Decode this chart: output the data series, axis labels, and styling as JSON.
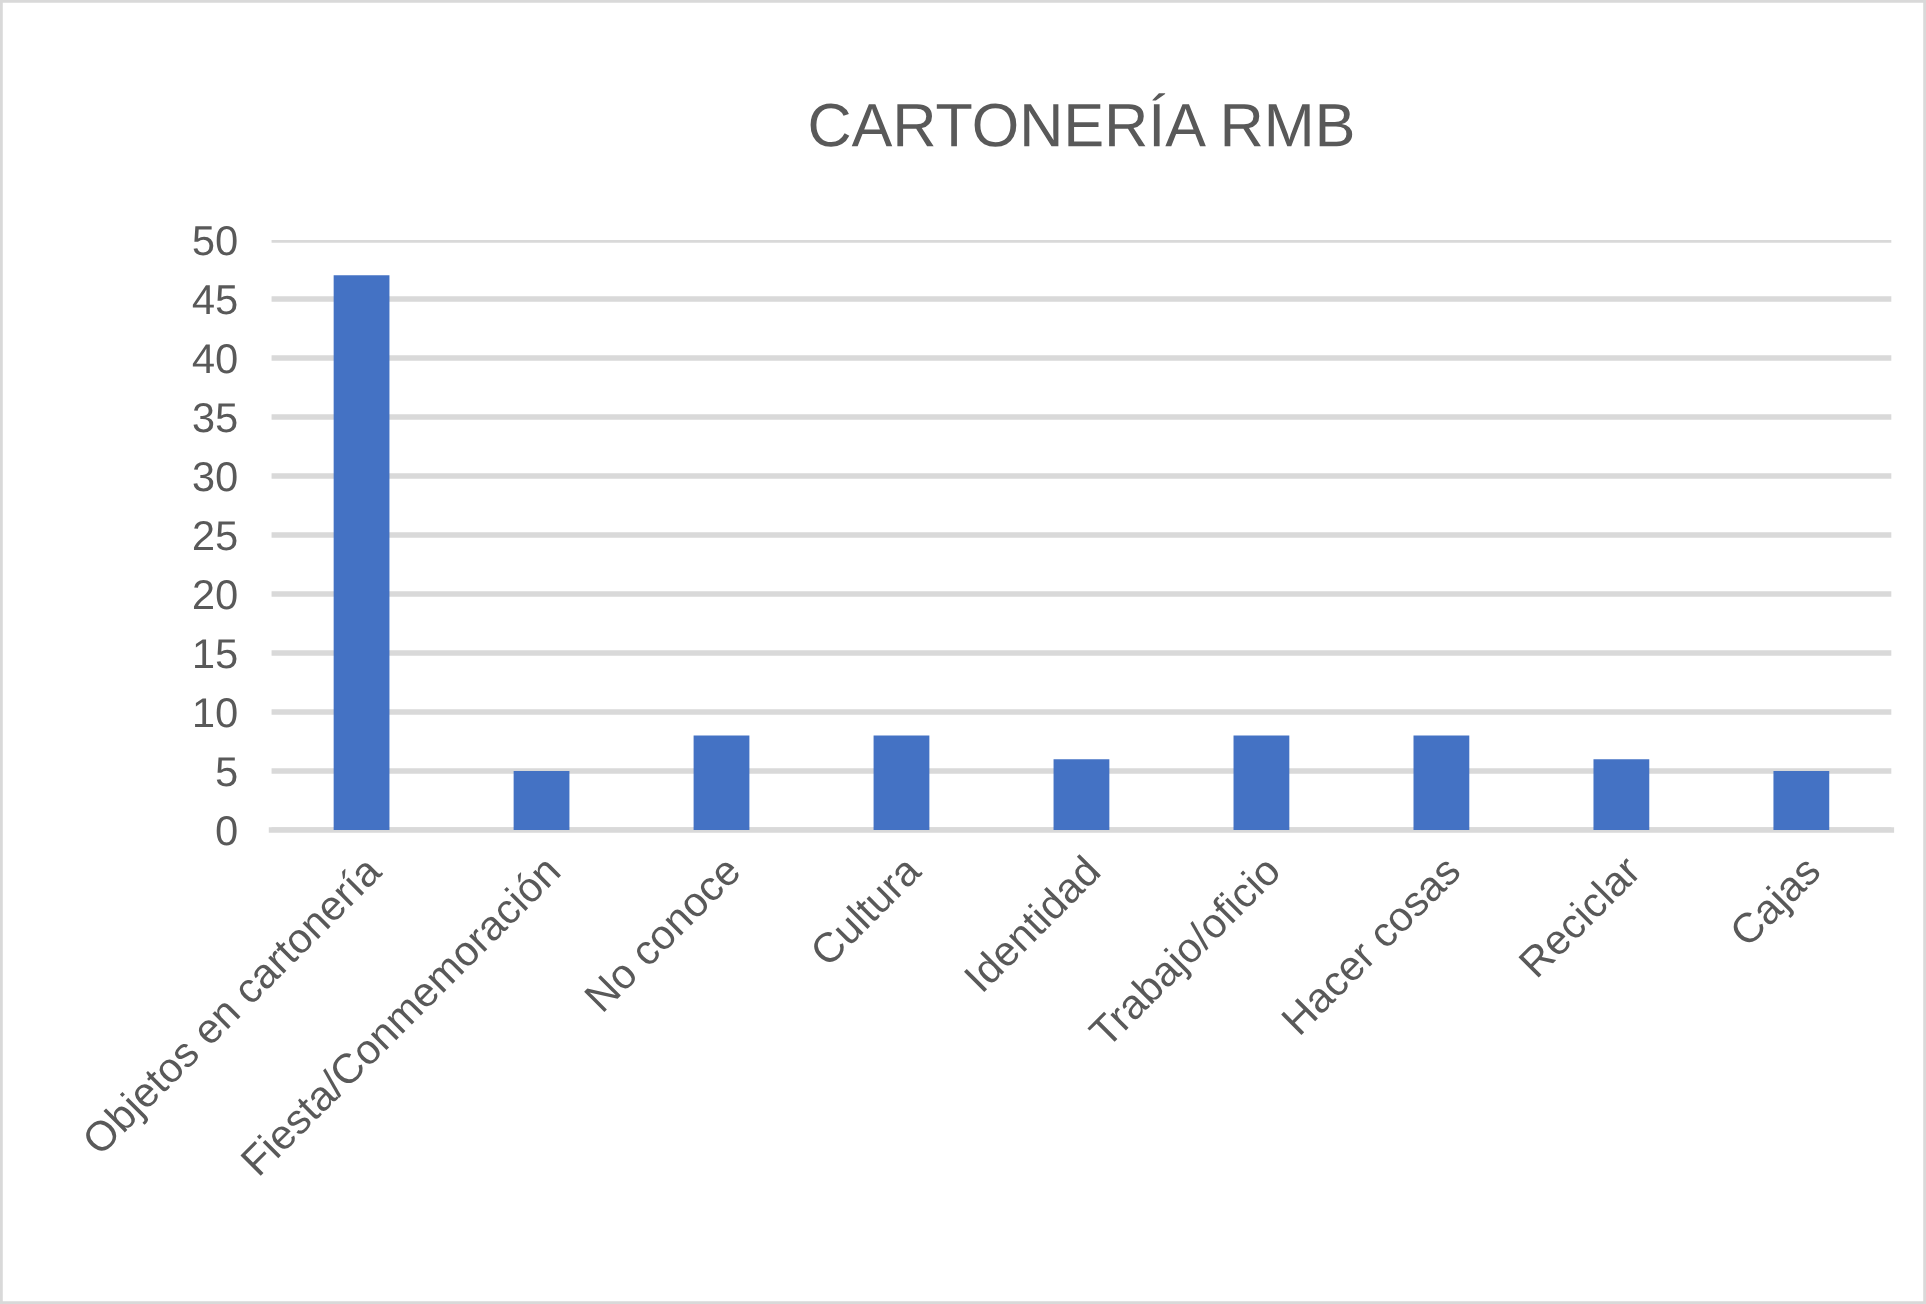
{
  "chart_data": {
    "type": "bar",
    "title": "CARTONERÍA RMB",
    "categories": [
      "Objetos en cartonería",
      "Fiesta/Conmemoración",
      "No conoce",
      "Cultura",
      "Identidad",
      "Trabajo/oficio",
      "Hacer cosas",
      "Reciclar",
      "Cajas"
    ],
    "values": [
      47,
      5,
      8,
      8,
      6,
      8,
      8,
      6,
      5
    ],
    "color": "#4472c4",
    "ylim": [
      0,
      50
    ],
    "yticks": [
      0,
      5,
      10,
      15,
      20,
      25,
      30,
      35,
      40,
      45,
      50
    ],
    "grid": "y"
  }
}
